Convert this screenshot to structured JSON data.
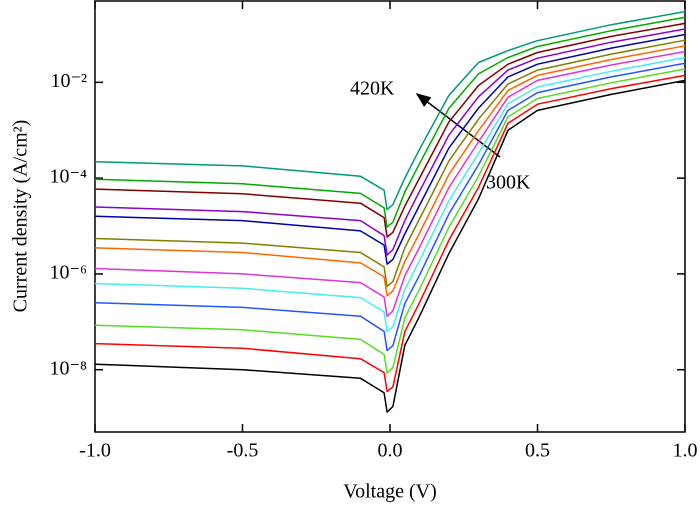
{
  "chart_data": {
    "type": "line",
    "xlabel": "Voltage (V)",
    "ylabel": "Current density (A/cm²)",
    "yscale": "log",
    "annotations": [
      "420K",
      "300K"
    ],
    "x": [
      -1.0,
      -0.5,
      -0.1,
      -0.02,
      -0.01,
      0.01,
      0.05,
      0.1,
      0.2,
      0.3,
      0.4,
      0.5,
      0.75,
      1.0
    ],
    "series": [
      {
        "color": "#000000",
        "values": [
          1.3e-08,
          1e-08,
          6.6e-09,
          3.3e-09,
          1.3e-09,
          1.7e-09,
          3.2e-08,
          1.3e-07,
          2.7e-06,
          3.7e-05,
          0.001,
          0.0026,
          0.0056,
          0.011
        ]
      },
      {
        "color": "#ff0000",
        "values": [
          3.5e-08,
          2.8e-08,
          1.7e-08,
          8.7e-09,
          3.5e-09,
          4.4e-09,
          6.2e-08,
          2.5e-07,
          5.1e-06,
          6.4e-05,
          0.0014,
          0.0035,
          0.0074,
          0.014
        ]
      },
      {
        "color": "#55dd22",
        "values": [
          8.5e-08,
          6.8e-08,
          4.3e-08,
          2.1e-08,
          8.5e-09,
          1.1e-08,
          1.2e-07,
          4.8e-07,
          9.5e-06,
          0.00011,
          0.0019,
          0.0046,
          0.0098,
          0.019
        ]
      },
      {
        "color": "#2255ff",
        "values": [
          2.5e-07,
          2e-07,
          1.3e-07,
          6.3e-08,
          2.5e-08,
          3.2e-08,
          2.4e-07,
          9.4e-07,
          1.8e-05,
          0.00019,
          0.0026,
          0.0061,
          0.013,
          0.025
        ]
      },
      {
        "color": "#44eeee",
        "values": [
          6.3e-07,
          5e-07,
          3.2e-07,
          1.6e-07,
          6.3e-08,
          7.9e-08,
          4.7e-07,
          1.9e-06,
          3.4e-05,
          0.00033,
          0.0036,
          0.008,
          0.017,
          0.033
        ]
      },
      {
        "color": "#dd33dd",
        "values": [
          1.3e-06,
          1e-06,
          6.6e-07,
          3.3e-07,
          1.3e-07,
          1.7e-07,
          9.1e-07,
          3.6e-06,
          6.4e-05,
          0.00057,
          0.0049,
          0.011,
          0.023,
          0.044
        ]
      },
      {
        "color": "#ff6600",
        "values": [
          3.5e-06,
          2.8e-06,
          1.7e-06,
          8.7e-07,
          3.5e-07,
          4.4e-07,
          1.8e-06,
          7.1e-06,
          0.00012,
          0.00098,
          0.0068,
          0.014,
          0.03,
          0.058
        ]
      },
      {
        "color": "#808000",
        "values": [
          5.5e-06,
          4.4e-06,
          2.8e-06,
          1.4e-06,
          5.5e-07,
          6.9e-07,
          3.5e-06,
          1.4e-05,
          0.00023,
          0.0017,
          0.0093,
          0.018,
          0.039,
          0.076
        ]
      },
      {
        "color": "#0000aa",
        "values": [
          1.6e-05,
          1.3e-05,
          7.9e-06,
          4e-06,
          1.6e-06,
          2e-06,
          6.8e-06,
          2.7e-05,
          0.00043,
          0.0029,
          0.013,
          0.024,
          0.052,
          0.1
        ]
      },
      {
        "color": "#8800cc",
        "values": [
          2.5e-05,
          2e-05,
          1.3e-05,
          6.3e-06,
          2.5e-06,
          3.2e-06,
          1.3e-05,
          5.3e-05,
          0.0008,
          0.005,
          0.018,
          0.032,
          0.069,
          0.13
        ]
      },
      {
        "color": "#800000",
        "values": [
          5.9e-05,
          4.7e-05,
          3e-05,
          1.5e-05,
          5.9e-06,
          7.4e-06,
          2.6e-05,
          0.0001,
          0.0015,
          0.0086,
          0.024,
          0.042,
          0.091,
          0.17
        ]
      },
      {
        "color": "#00aa00",
        "values": [
          9.5e-05,
          7.6e-05,
          4.8e-05,
          2.4e-05,
          9.5e-06,
          1.2e-05,
          5.1e-05,
          0.0002,
          0.0029,
          0.015,
          0.033,
          0.056,
          0.12,
          0.23
        ]
      },
      {
        "color": "#009977",
        "values": [
          0.00022,
          0.00018,
          0.00011,
          5.6e-05,
          2.2e-05,
          2.8e-05,
          0.0001,
          0.0004,
          0.0054,
          0.026,
          0.046,
          0.074,
          0.16,
          0.3
        ]
      }
    ],
    "xlim": [
      -1.0,
      1.0
    ],
    "xticks": [
      {
        "value": -1.0,
        "label": "-1.0"
      },
      -0.5,
      {
        "value": 0.0,
        "label": "0.0"
      },
      0.5,
      {
        "value": 1.0,
        "label": "1.0"
      }
    ],
    "ylim": [
      5e-10,
      0.5
    ],
    "yticks": [
      {
        "value": 1e-08,
        "label": "10⁻⁸"
      },
      {
        "value": 1e-06,
        "label": "10⁻⁶"
      },
      {
        "value": 0.0001,
        "label": "10⁻⁴"
      },
      {
        "value": 0.01,
        "label": "10⁻²"
      }
    ],
    "grid": false
  }
}
